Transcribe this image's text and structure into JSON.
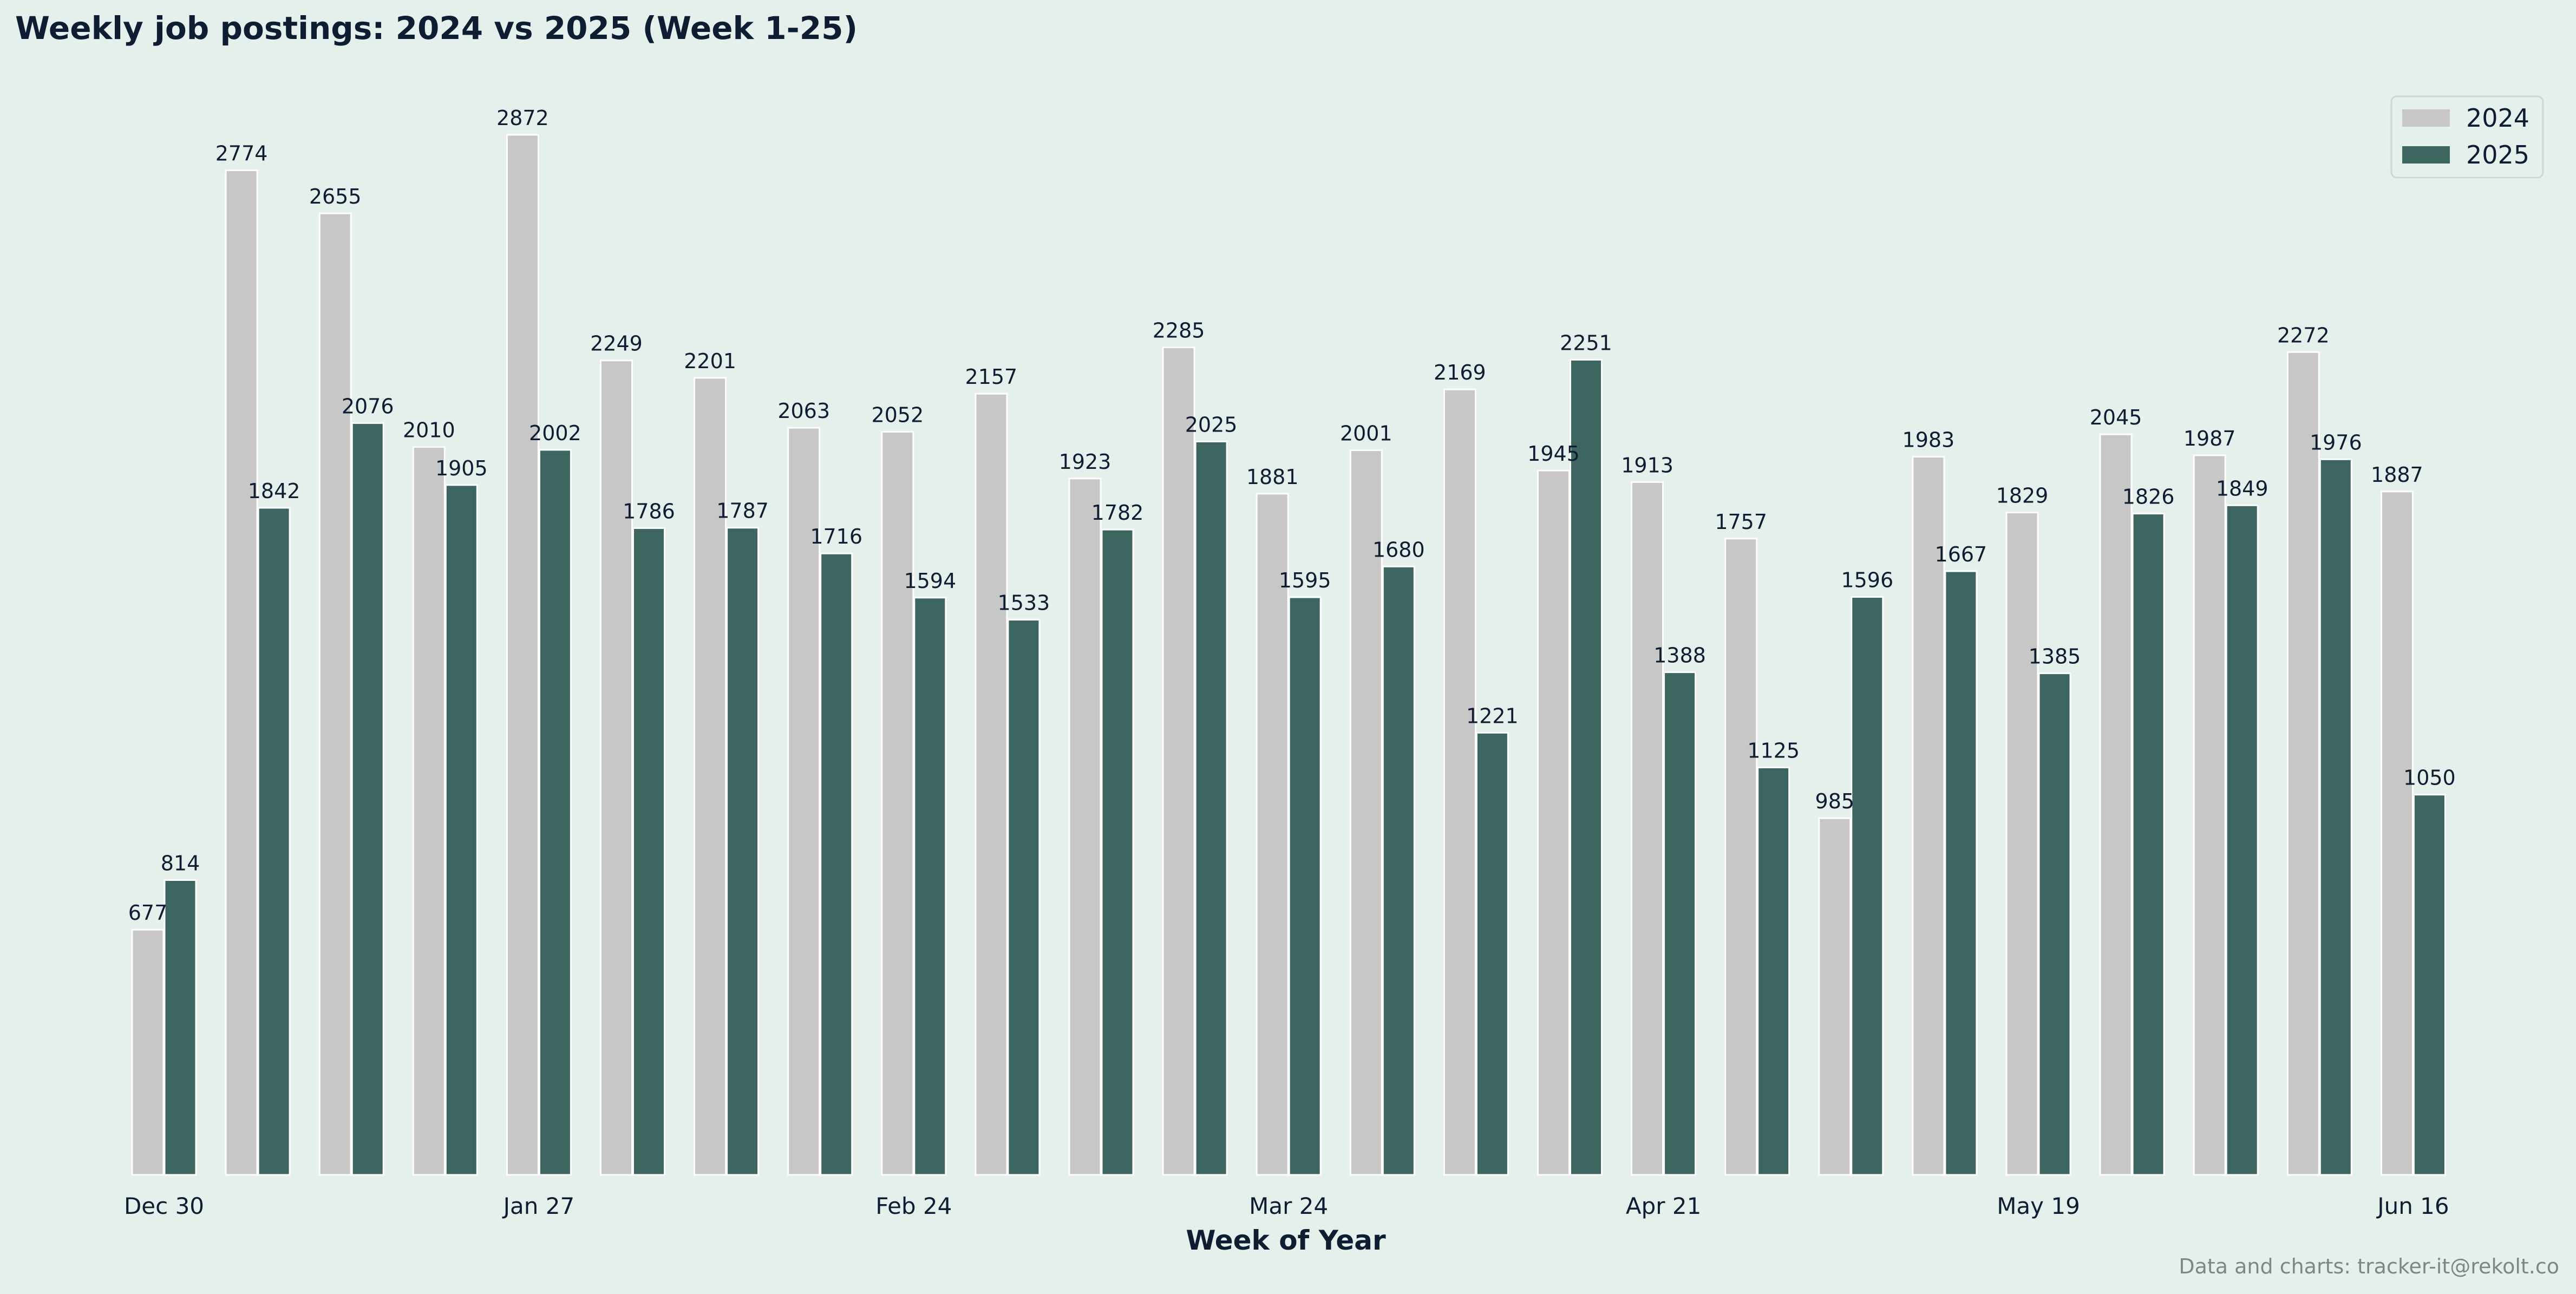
{
  "chart_data": {
    "type": "bar",
    "title": "Weekly job postings: 2024 vs 2025 (Week 1-25)",
    "xlabel": "Week of Year",
    "ylabel": "",
    "ylim": [
      0,
      3020
    ],
    "grid": false,
    "legend_position": "top-right",
    "x_tick_labels": [
      {
        "category_index": 0,
        "label": "Dec 30"
      },
      {
        "category_index": 4,
        "label": "Jan 27"
      },
      {
        "category_index": 8,
        "label": "Feb 24"
      },
      {
        "category_index": 12,
        "label": "Mar 24"
      },
      {
        "category_index": 16,
        "label": "Apr 21"
      },
      {
        "category_index": 20,
        "label": "May 19"
      },
      {
        "category_index": 24,
        "label": "Jun 16"
      }
    ],
    "series": [
      {
        "name": "2024",
        "color": "#c6c7c6",
        "values": [
          677,
          2774,
          2655,
          2010,
          2872,
          2249,
          2201,
          2063,
          2052,
          2157,
          1923,
          2285,
          1881,
          2001,
          2169,
          1945,
          1913,
          1757,
          985,
          1983,
          1829,
          2045,
          1987,
          2272,
          1887
        ]
      },
      {
        "name": "2025",
        "color": "#3d6661",
        "values": [
          814,
          1842,
          2076,
          1905,
          2002,
          1786,
          1787,
          1716,
          1594,
          1533,
          1782,
          2025,
          1595,
          1680,
          1221,
          2251,
          1388,
          1125,
          1596,
          1667,
          1385,
          1826,
          1849,
          1976,
          1050
        ]
      }
    ],
    "footer": "Data and charts: tracker-it@rekolt.co"
  }
}
